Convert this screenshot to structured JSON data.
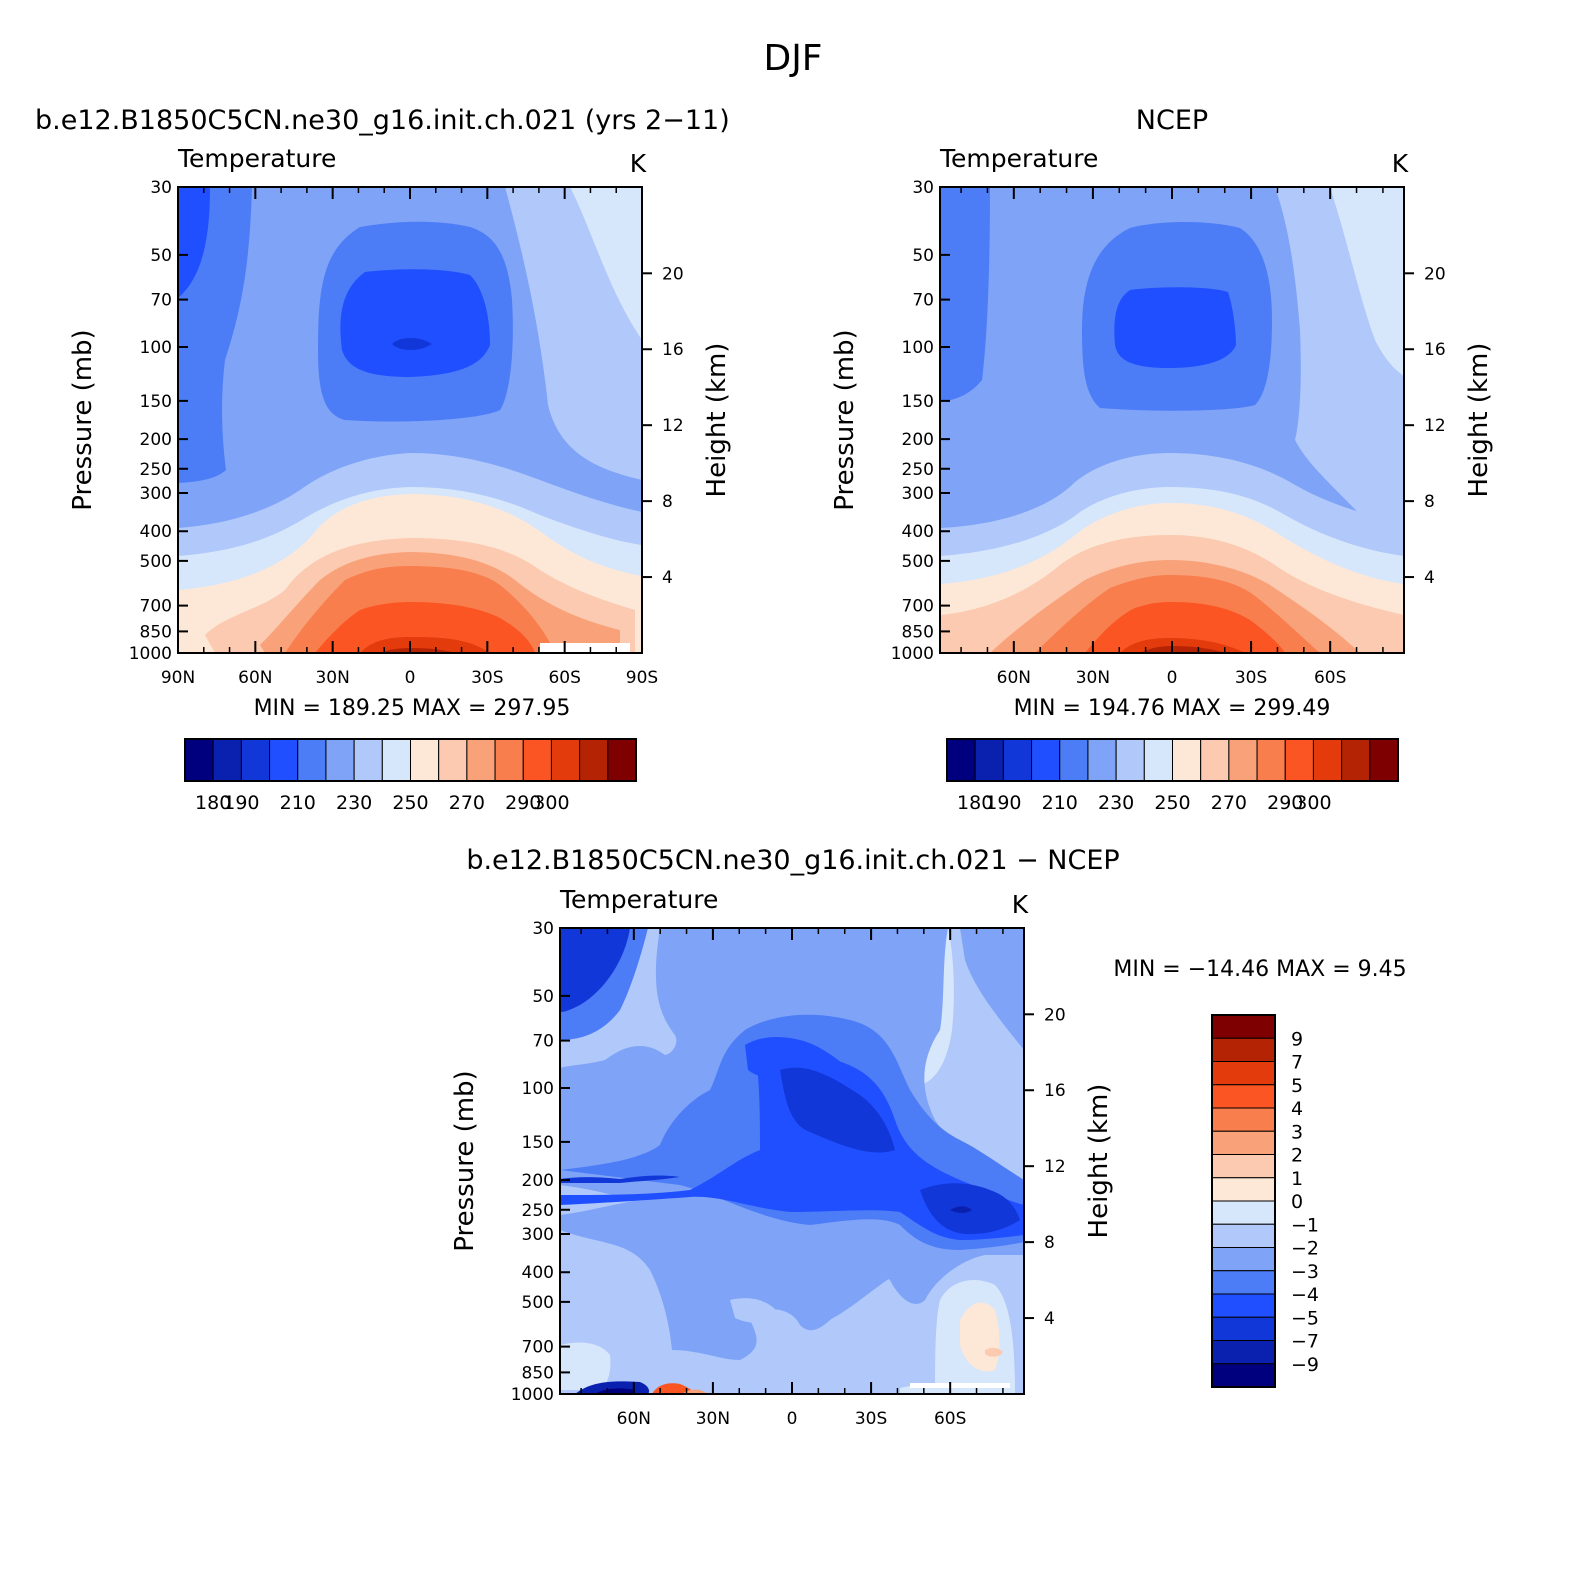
{
  "figure": {
    "title": "DJF"
  },
  "chart_data": [
    {
      "type": "contour",
      "title": "b.e12.B1850C5CN.ne30_g16.init.ch.021 (yrs 2−11)",
      "left_string": "Temperature",
      "right_string": "K",
      "ylabel": "Pressure  (mb)",
      "ylabel_right": "Height  (km)",
      "x_ticks": [
        "90N",
        "60N",
        "30N",
        "0",
        "30S",
        "60S",
        "90S"
      ],
      "x_values": [
        90,
        60,
        30,
        0,
        -30,
        -60,
        -90
      ],
      "xlim": [
        90,
        -90
      ],
      "y_ticks": [
        "30",
        "50",
        "70",
        "100",
        "150",
        "200",
        "250",
        "300",
        "400",
        "500",
        "700",
        "850",
        "1000"
      ],
      "y_values": [
        30,
        50,
        70,
        100,
        150,
        200,
        250,
        300,
        400,
        500,
        700,
        850,
        1000
      ],
      "ylim": [
        1000,
        30
      ],
      "y_scale": "log",
      "height_ticks": [
        "4",
        "8",
        "12",
        "16",
        "20"
      ],
      "height_values": [
        4,
        8,
        12,
        16,
        20
      ],
      "stats": "MIN  =  189.25   MAX  =  297.95",
      "min": 189.25,
      "max": 297.95,
      "levels": [
        180,
        190,
        200,
        210,
        220,
        230,
        240,
        250,
        260,
        270,
        280,
        290,
        300
      ],
      "colorbar_labels": [
        "180",
        "190",
        "210",
        "230",
        "250",
        "270",
        "290",
        "300"
      ],
      "colorbar_orientation": "horizontal"
    },
    {
      "type": "contour",
      "title": "NCEP",
      "left_string": "Temperature",
      "right_string": "K",
      "ylabel": "Pressure  (mb)",
      "ylabel_right": "Height  (km)",
      "x_ticks": [
        "60N",
        "30N",
        "0",
        "30S",
        "60S"
      ],
      "x_values": [
        60,
        30,
        0,
        -30,
        -60
      ],
      "xlim": [
        88,
        -88
      ],
      "y_ticks": [
        "30",
        "50",
        "70",
        "100",
        "150",
        "200",
        "250",
        "300",
        "400",
        "500",
        "700",
        "850",
        "1000"
      ],
      "y_values": [
        30,
        50,
        70,
        100,
        150,
        200,
        250,
        300,
        400,
        500,
        700,
        850,
        1000
      ],
      "ylim": [
        1000,
        30
      ],
      "y_scale": "log",
      "height_ticks": [
        "4",
        "8",
        "12",
        "16",
        "20"
      ],
      "height_values": [
        4,
        8,
        12,
        16,
        20
      ],
      "stats": "MIN  =  194.76   MAX  =  299.49",
      "min": 194.76,
      "max": 299.49,
      "levels": [
        180,
        190,
        200,
        210,
        220,
        230,
        240,
        250,
        260,
        270,
        280,
        290,
        300
      ],
      "colorbar_labels": [
        "180",
        "190",
        "210",
        "230",
        "250",
        "270",
        "290",
        "300"
      ],
      "colorbar_orientation": "horizontal"
    },
    {
      "type": "contour",
      "title": "b.e12.B1850C5CN.ne30_g16.init.ch.021  −  NCEP",
      "left_string": "Temperature",
      "right_string": "K",
      "ylabel": "Pressure  (mb)",
      "ylabel_right": "Height  (km)",
      "x_ticks": [
        "60N",
        "30N",
        "0",
        "30S",
        "60S"
      ],
      "x_values": [
        60,
        30,
        0,
        -30,
        -60
      ],
      "xlim": [
        88,
        -88
      ],
      "y_ticks": [
        "30",
        "50",
        "70",
        "100",
        "150",
        "200",
        "250",
        "300",
        "400",
        "500",
        "700",
        "850",
        "1000"
      ],
      "y_values": [
        30,
        50,
        70,
        100,
        150,
        200,
        250,
        300,
        400,
        500,
        700,
        850,
        1000
      ],
      "ylim": [
        1000,
        30
      ],
      "y_scale": "log",
      "height_ticks": [
        "4",
        "8",
        "12",
        "16",
        "20"
      ],
      "height_values": [
        4,
        8,
        12,
        16,
        20
      ],
      "stats": "MIN  =  −14.46    MAX  =      9.45",
      "min": -14.46,
      "max": 9.45,
      "levels": [
        -9,
        -7,
        -5,
        -4,
        -3,
        -2,
        -1,
        0,
        1,
        2,
        3,
        4,
        5,
        7,
        9
      ],
      "colorbar_labels": [
        "9",
        "7",
        "5",
        "4",
        "3",
        "2",
        "1",
        "0",
        "−1",
        "−2",
        "−3",
        "−4",
        "−5",
        "−7",
        "−9"
      ],
      "colorbar_orientation": "vertical"
    }
  ],
  "colors": {
    "temperature_scale": [
      "#00007f",
      "#0a21b0",
      "#1237d9",
      "#1f4fff",
      "#4d7cf7",
      "#7ea3f7",
      "#b0c8fa",
      "#d6e6fb",
      "#fde8d8",
      "#fccab0",
      "#f9a27a",
      "#f87e4d",
      "#fa5522",
      "#e33b0c",
      "#b52305",
      "#7f0000"
    ],
    "difference_scale": [
      "#7f0000",
      "#b52305",
      "#e33b0c",
      "#fa5522",
      "#f87e4d",
      "#f9a27a",
      "#fccab0",
      "#fde8d8",
      "#d6e6fb",
      "#b0c8fa",
      "#7ea3f7",
      "#4d7cf7",
      "#1f4fff",
      "#1237d9",
      "#0a21b0",
      "#00007f"
    ]
  }
}
